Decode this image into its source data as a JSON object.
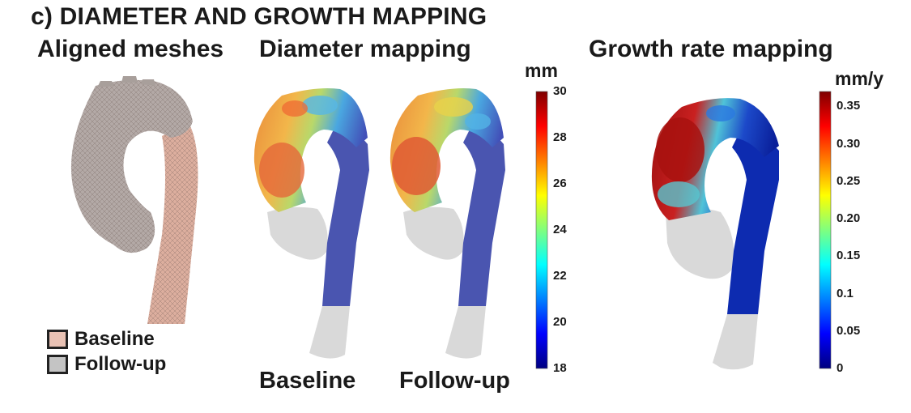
{
  "header": {
    "panel_letter": "c)",
    "title": "DIAMETER AND GROWTH MAPPING"
  },
  "panels": {
    "aligned_title": "Aligned meshes",
    "diameter_title": "Diameter mapping",
    "growth_title": "Growth rate mapping"
  },
  "legend": {
    "baseline": "Baseline",
    "followup": "Follow-up",
    "baseline_color": "#e9c2b4",
    "followup_color": "#c4c4c4"
  },
  "sublabels": {
    "baseline": "Baseline",
    "followup": "Follow-up"
  },
  "diameter_scale": {
    "unit": "mm",
    "ticks": [
      "30",
      "28",
      "26",
      "24",
      "22",
      "20",
      "18"
    ],
    "range": [
      18,
      30
    ]
  },
  "growth_scale": {
    "unit": "mm/y",
    "ticks": [
      "0.35",
      "0.30",
      "0.25",
      "0.20",
      "0.15",
      "0.1",
      "0.05",
      "0"
    ],
    "range": [
      0,
      0.37
    ]
  },
  "colors": {
    "jet_low": "#00007f",
    "jet_high": "#7f0000",
    "gray_region": "#d9d9d9"
  }
}
